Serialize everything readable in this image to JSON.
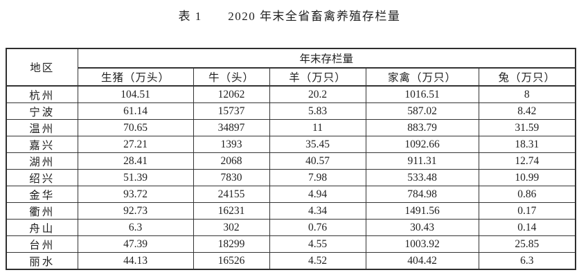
{
  "title": {
    "label": "表 1",
    "text": "2020 年末全省畜禽养殖存栏量"
  },
  "table": {
    "region_header": "地区",
    "group_header": "年末存栏量",
    "columns": [
      "生猪（万头）",
      "牛（头）",
      "羊（万只）",
      "家禽（万只）",
      "兔（万只）"
    ],
    "rows": [
      {
        "region": "杭州",
        "values": [
          "104.51",
          "12062",
          "20.2",
          "1016.51",
          "8"
        ]
      },
      {
        "region": "宁波",
        "values": [
          "61.14",
          "15737",
          "5.83",
          "587.02",
          "8.42"
        ]
      },
      {
        "region": "温州",
        "values": [
          "70.65",
          "34897",
          "11",
          "883.79",
          "31.59"
        ]
      },
      {
        "region": "嘉兴",
        "values": [
          "27.21",
          "1393",
          "35.45",
          "1092.66",
          "18.31"
        ]
      },
      {
        "region": "湖州",
        "values": [
          "28.41",
          "2068",
          "40.57",
          "911.31",
          "12.74"
        ]
      },
      {
        "region": "绍兴",
        "values": [
          "51.39",
          "7830",
          "7.98",
          "533.48",
          "10.99"
        ]
      },
      {
        "region": "金华",
        "values": [
          "93.72",
          "24155",
          "4.94",
          "784.98",
          "0.86"
        ]
      },
      {
        "region": "衢州",
        "values": [
          "92.73",
          "16231",
          "4.34",
          "1491.56",
          "0.17"
        ]
      },
      {
        "region": "舟山",
        "values": [
          "6.3",
          "302",
          "0.76",
          "30.43",
          "0.14"
        ]
      },
      {
        "region": "台州",
        "values": [
          "47.39",
          "18299",
          "4.55",
          "1003.92",
          "25.85"
        ]
      },
      {
        "region": "丽水",
        "values": [
          "44.13",
          "16526",
          "4.52",
          "404.42",
          "6.3"
        ]
      }
    ]
  },
  "colors": {
    "background": "#ffffff",
    "text": "#1f1f1f",
    "border": "#333333"
  }
}
